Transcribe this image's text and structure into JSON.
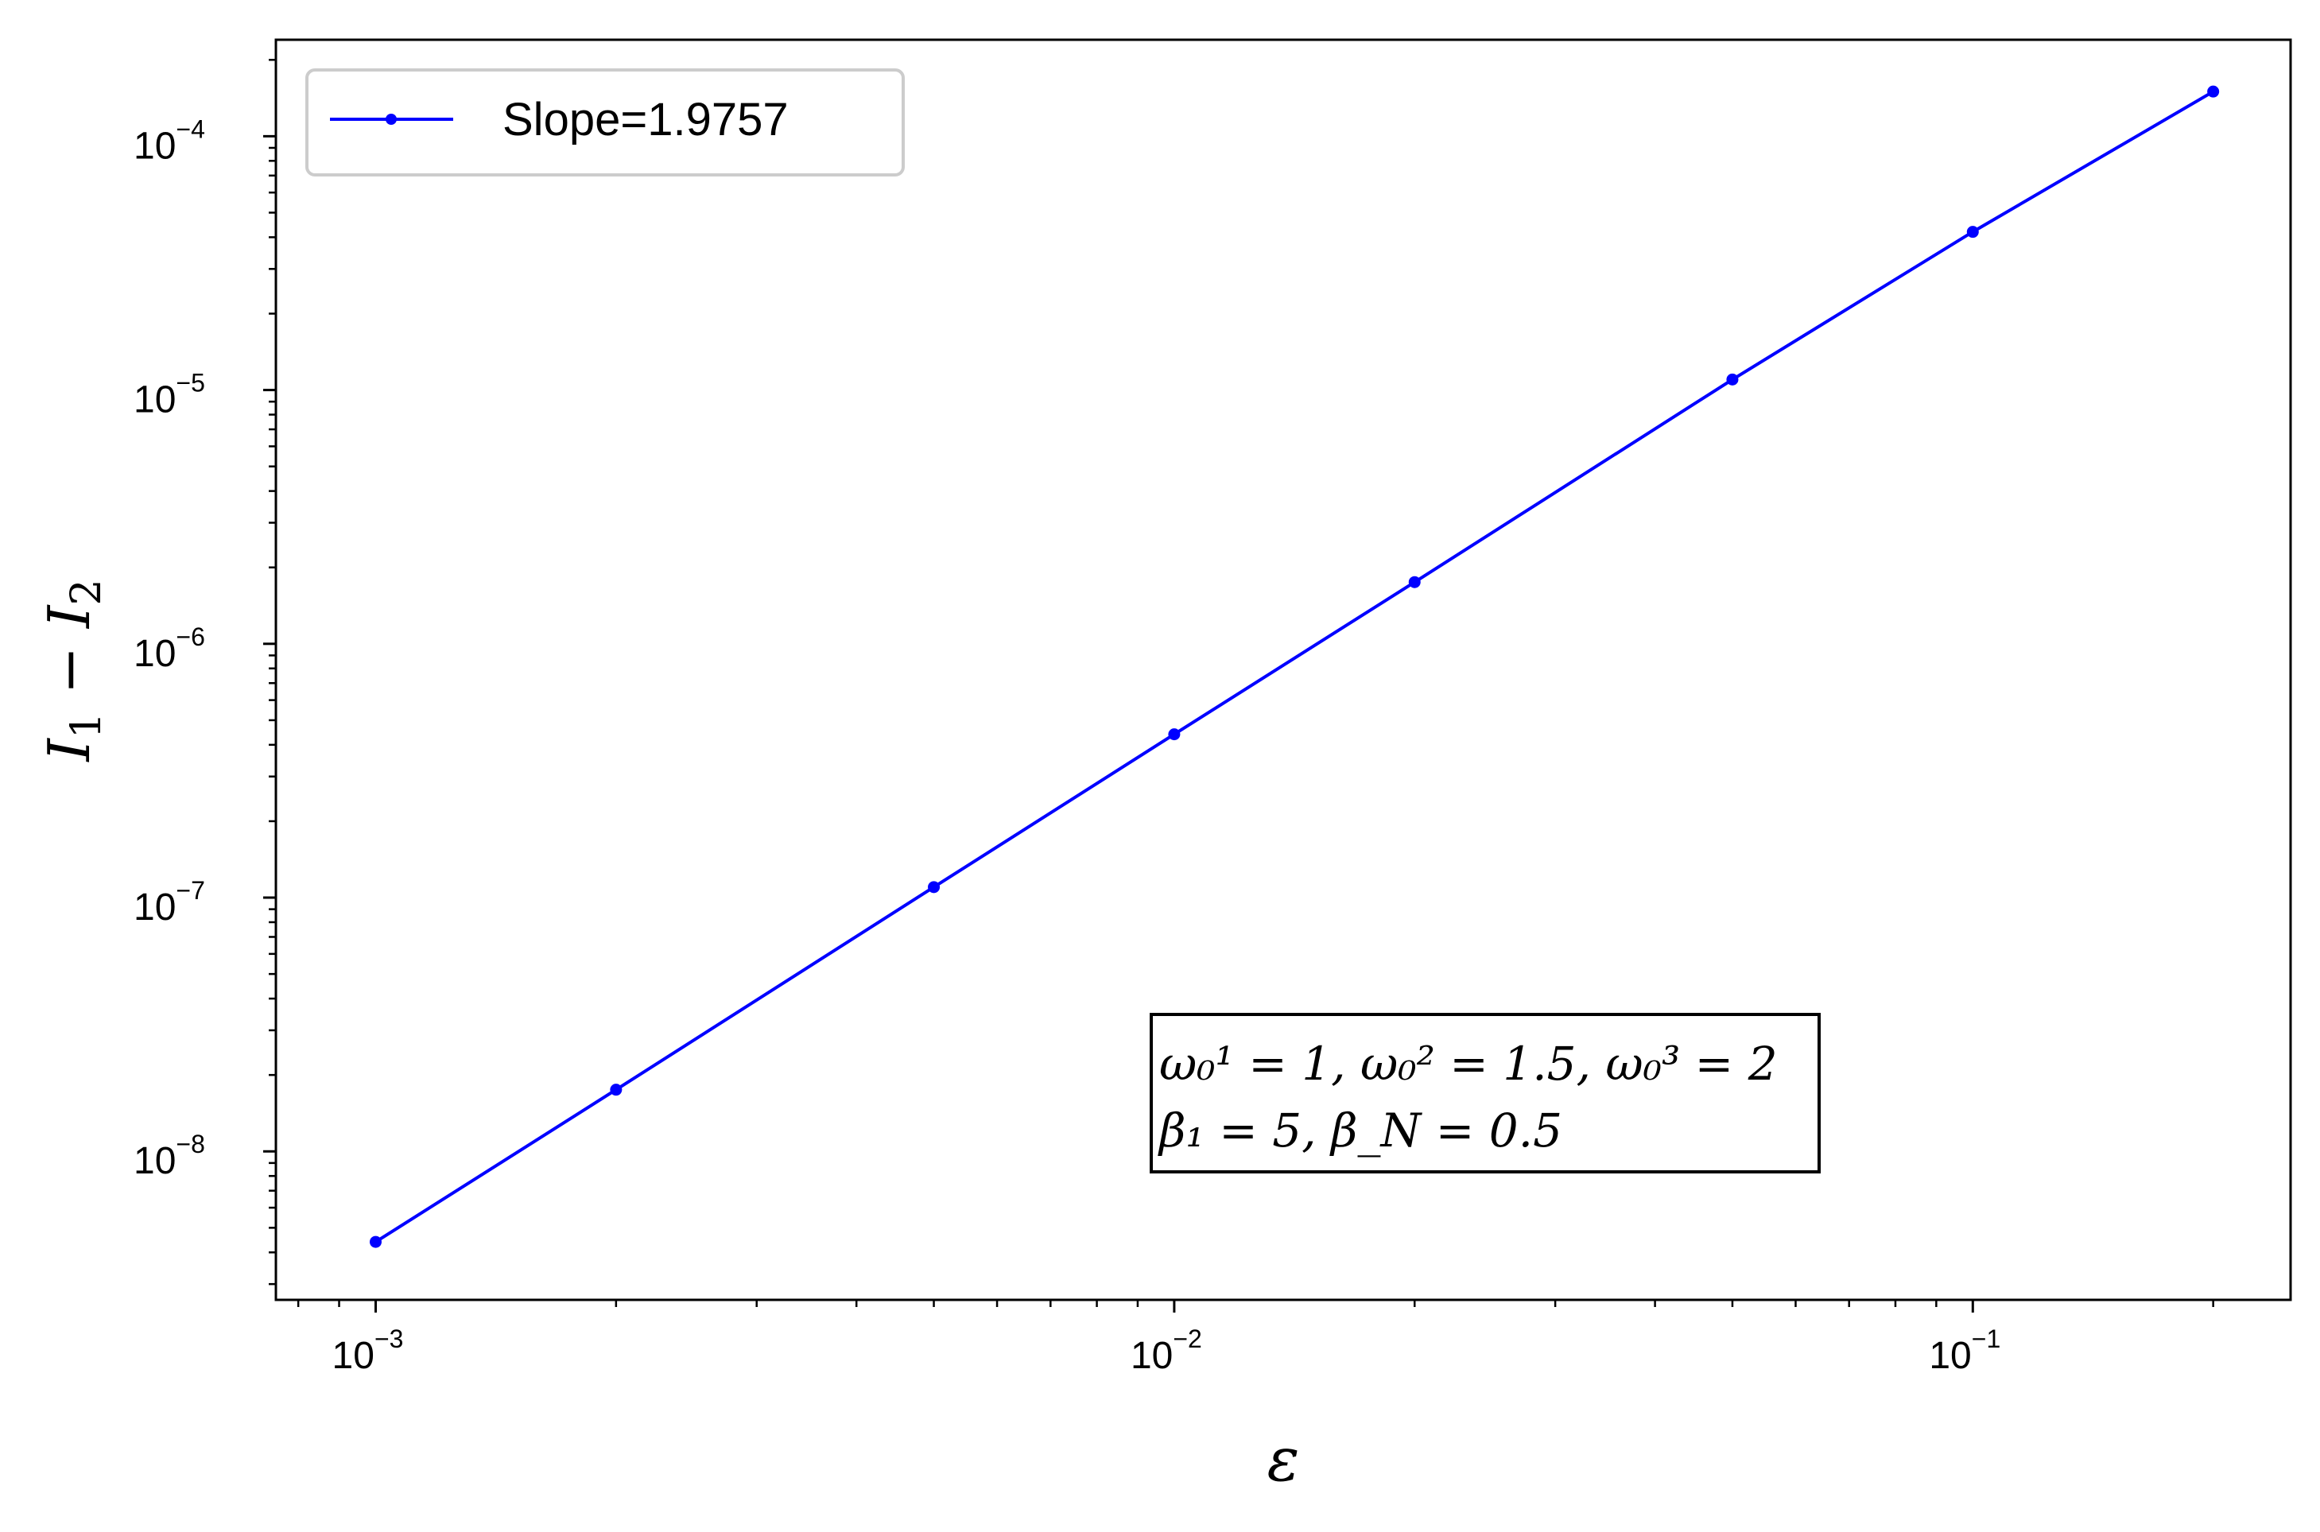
{
  "chart_data": {
    "type": "line",
    "x_scale": "log",
    "y_scale": "log",
    "xlabel": "ε",
    "ylabel": {
      "base": "I",
      "sub1": "1",
      "minus": " − ",
      "sub2": "2"
    },
    "xlim": [
      0.00075,
      0.25
    ],
    "ylim": [
      2.6e-09,
      0.00024
    ],
    "x_ticks": [
      {
        "value": 0.001,
        "base": "10",
        "exp": "−3"
      },
      {
        "value": 0.01,
        "base": "10",
        "exp": "−2"
      },
      {
        "value": 0.1,
        "base": "10",
        "exp": "−1"
      }
    ],
    "y_ticks": [
      {
        "value": 1e-08,
        "base": "10",
        "exp": "−8"
      },
      {
        "value": 1e-07,
        "base": "10",
        "exp": "−7"
      },
      {
        "value": 1e-06,
        "base": "10",
        "exp": "−6"
      },
      {
        "value": 1e-05,
        "base": "10",
        "exp": "−5"
      },
      {
        "value": 0.0001,
        "base": "10",
        "exp": "−4"
      }
    ],
    "grid": false,
    "legend_position": "top-left",
    "series": [
      {
        "name": "Slope=1.9757",
        "color": "#0000ff",
        "marker": "dot",
        "x": [
          0.001,
          0.002,
          0.005,
          0.01,
          0.02,
          0.05,
          0.1,
          0.2
        ],
        "y": [
          4.4e-09,
          1.75e-08,
          1.1e-07,
          4.4e-07,
          1.75e-06,
          1.1e-05,
          4.2e-05,
          0.00015
        ]
      }
    ],
    "annotation": {
      "position": "lower-center",
      "line1": "ω₀¹ = 1, ω₀² = 1.5, ω₀³ = 2",
      "line2": "β₁ = 5, β_N = 0.5"
    }
  }
}
